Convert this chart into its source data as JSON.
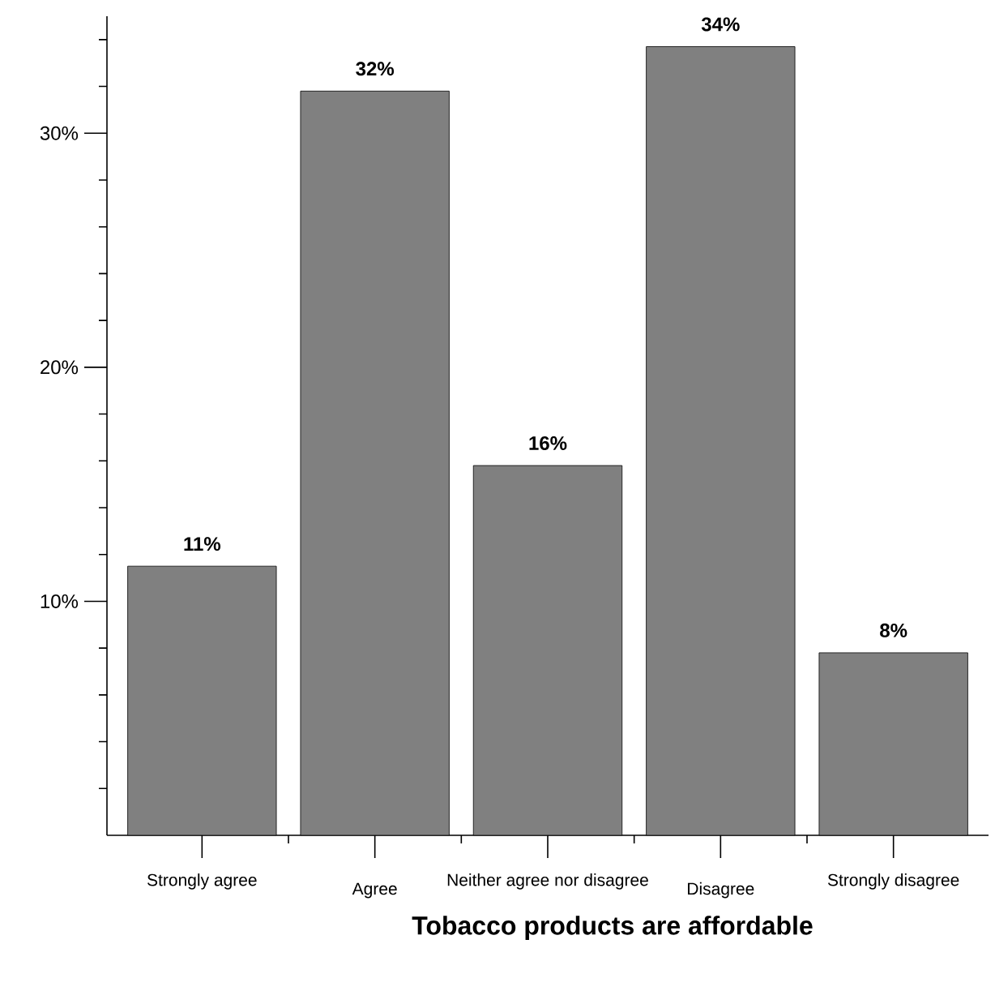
{
  "chart_data": {
    "type": "bar",
    "xlabel": "**Tobacco products are affordable**",
    "categories": [
      "Strongly agree",
      "Agree",
      "Neither agree nor disagree",
      "Disagree",
      "Strongly disagree"
    ],
    "values": [
      11.5,
      31.8,
      15.8,
      33.7,
      7.8
    ],
    "value_labels": [
      "11%",
      "32%",
      "16%",
      "34%",
      "8%"
    ],
    "color": "#808080",
    "ylim": [
      0,
      35
    ],
    "yticks": [
      {
        "value": 2,
        "label": null
      },
      {
        "value": 4,
        "label": null
      },
      {
        "value": 6,
        "label": null
      },
      {
        "value": 8,
        "label": null
      },
      {
        "value": 10,
        "label": "10%"
      },
      {
        "value": 12,
        "label": null
      },
      {
        "value": 14,
        "label": null
      },
      {
        "value": 16,
        "label": null
      },
      {
        "value": 18,
        "label": null
      },
      {
        "value": 20,
        "label": "20%"
      },
      {
        "value": 22,
        "label": null
      },
      {
        "value": 24,
        "label": null
      },
      {
        "value": 26,
        "label": null
      },
      {
        "value": 28,
        "label": null
      },
      {
        "value": 30,
        "label": "30%"
      },
      {
        "value": 32,
        "label": null
      },
      {
        "value": 34,
        "label": null
      }
    ]
  }
}
